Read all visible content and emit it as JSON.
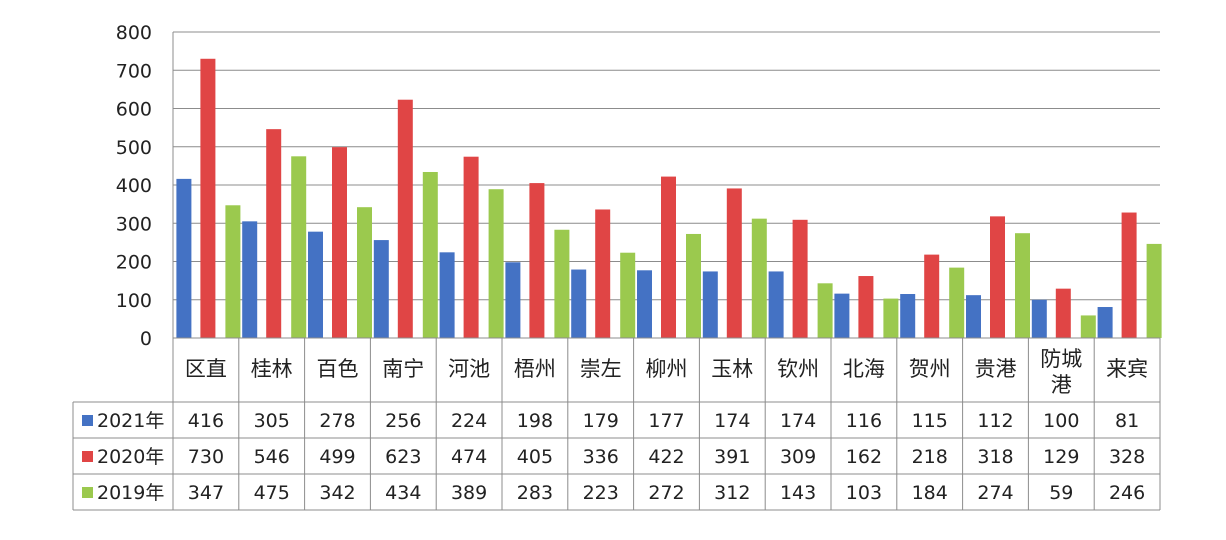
{
  "chart_data": {
    "type": "bar",
    "categories": [
      "区直",
      "桂林",
      "百色",
      "南宁",
      "河池",
      "梧州",
      "崇左",
      "柳州",
      "玉林",
      "钦州",
      "北海",
      "贺州",
      "贵港",
      "防城港",
      "来宾"
    ],
    "series": [
      {
        "name": "2021年",
        "color": "#4472c4",
        "values": [
          416,
          305,
          278,
          256,
          224,
          198,
          179,
          177,
          174,
          174,
          116,
          115,
          112,
          100,
          81
        ]
      },
      {
        "name": "2020年",
        "color": "#e04545",
        "values": [
          730,
          546,
          499,
          623,
          474,
          405,
          336,
          422,
          391,
          309,
          162,
          218,
          318,
          129,
          328
        ]
      },
      {
        "name": "2019年",
        "color": "#9bc94e",
        "values": [
          347,
          475,
          342,
          434,
          389,
          283,
          223,
          272,
          312,
          143,
          103,
          184,
          274,
          59,
          246
        ]
      }
    ],
    "yticks": [
      "0",
      "100",
      "200",
      "300",
      "400",
      "500",
      "600",
      "700",
      "800"
    ],
    "ylim": [
      0,
      800
    ],
    "grid": true,
    "legend": "data-table-left"
  }
}
